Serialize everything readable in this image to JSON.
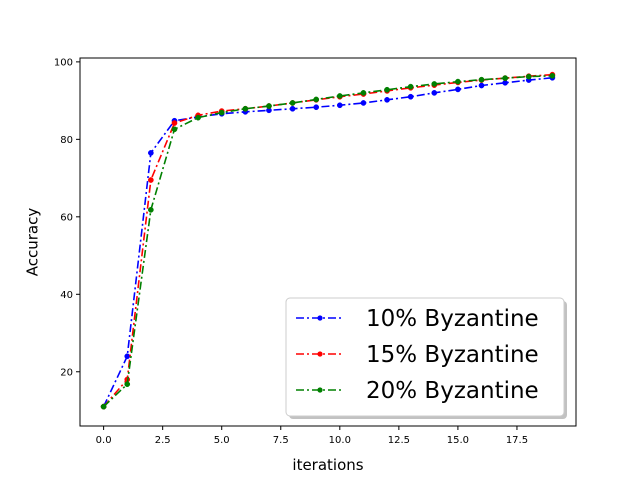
{
  "chart_data": {
    "type": "line",
    "title": "",
    "xlabel": "iterations",
    "ylabel": "Accuracy",
    "xlim": [
      -1,
      20
    ],
    "ylim": [
      6,
      101
    ],
    "xticks": [
      0.0,
      2.5,
      5.0,
      7.5,
      10.0,
      12.5,
      15.0,
      17.5
    ],
    "xtick_labels": [
      "0.0",
      "2.5",
      "5.0",
      "7.5",
      "10.0",
      "12.5",
      "15.0",
      "17.5"
    ],
    "yticks": [
      20,
      40,
      60,
      80,
      100
    ],
    "ytick_labels": [
      "20",
      "40",
      "60",
      "80",
      "100"
    ],
    "grid": false,
    "legend_position": "lower-right",
    "x": [
      0,
      1,
      2,
      3,
      4,
      5,
      6,
      7,
      8,
      9,
      10,
      11,
      12,
      13,
      14,
      15,
      16,
      17,
      18,
      19
    ],
    "series": [
      {
        "name": "10% Byzantine",
        "color": "#0000ff",
        "values": [
          11,
          24,
          76.5,
          84.8,
          85.8,
          86.6,
          87.1,
          87.5,
          87.9,
          88.3,
          88.8,
          89.4,
          90.2,
          91.0,
          92.0,
          92.9,
          93.9,
          94.6,
          95.3,
          95.9
        ]
      },
      {
        "name": "15% Byzantine",
        "color": "#ff0000",
        "values": [
          11,
          18,
          69.5,
          84.2,
          86.2,
          87.3,
          87.9,
          88.6,
          89.4,
          90.2,
          91.0,
          91.7,
          92.5,
          93.3,
          94.0,
          94.7,
          95.3,
          95.8,
          96.3,
          96.7
        ]
      },
      {
        "name": "20% Byzantine",
        "color": "#008000",
        "values": [
          11,
          16.8,
          61.8,
          82.6,
          85.6,
          86.9,
          87.9,
          88.6,
          89.4,
          90.3,
          91.2,
          92.0,
          92.8,
          93.6,
          94.3,
          94.9,
          95.4,
          95.8,
          96.2,
          96.4
        ]
      }
    ]
  }
}
